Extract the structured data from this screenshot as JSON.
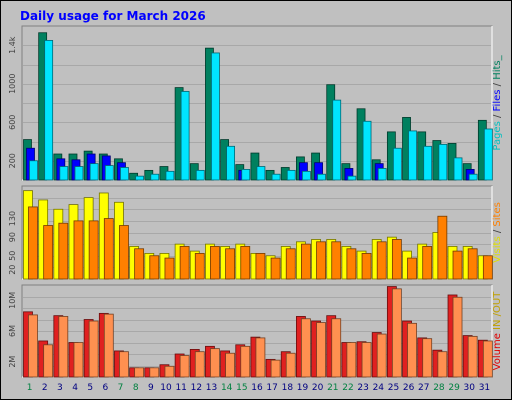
{
  "chart_data": {
    "type": "bar",
    "title": "Daily usage for March 2026",
    "categories": [
      "1",
      "2",
      "3",
      "4",
      "5",
      "6",
      "7",
      "8",
      "9",
      "10",
      "11",
      "12",
      "13",
      "14",
      "15",
      "16",
      "17",
      "18",
      "19",
      "20",
      "21",
      "22",
      "23",
      "24",
      "25",
      "26",
      "27",
      "28",
      "29",
      "30",
      "31"
    ],
    "weekend_days": [
      "1",
      "7",
      "8",
      "14",
      "15",
      "21",
      "22",
      "28",
      "29"
    ],
    "panels": [
      {
        "id": "hits",
        "ylim": [
          0,
          1600
        ],
        "ticks": [
          {
            "value": 200,
            "label": "200"
          },
          {
            "value": 600,
            "label": "600"
          },
          {
            "value": 1000,
            "label": "1000"
          },
          {
            "value": 1400,
            "label": "1.4k"
          }
        ],
        "right_label": [
          {
            "text": "Pages",
            "color": "#00bfbf"
          },
          {
            "text": " / ",
            "color": "#404040"
          },
          {
            "text": "Files",
            "color": "#0000ff"
          },
          {
            "text": " / ",
            "color": "#404040"
          },
          {
            "text": "Hits_",
            "color": "#00805f"
          }
        ],
        "series": [
          {
            "name": "Hits",
            "color": "#00805f",
            "values": [
              420,
              1530,
              270,
              270,
              300,
              270,
              220,
              70,
              100,
              140,
              960,
              170,
              1370,
              420,
              160,
              280,
              100,
              130,
              240,
              280,
              990,
              170,
              740,
              210,
              500,
              650,
              500,
              410,
              380,
              170,
              620
            ]
          },
          {
            "name": "Files",
            "color": "#0000ff",
            "values": [
              330,
              0,
              220,
              210,
              270,
              250,
              180,
              0,
              0,
              0,
              0,
              0,
              0,
              0,
              100,
              0,
              0,
              0,
              180,
              180,
              0,
              120,
              0,
              170,
              0,
              0,
              0,
              0,
              0,
              110,
              0
            ]
          },
          {
            "name": "Pages",
            "color": "#00e5ff",
            "values": [
              200,
              1450,
              140,
              140,
              170,
              150,
              130,
              40,
              60,
              90,
              920,
              100,
              1320,
              350,
              110,
              140,
              60,
              100,
              90,
              60,
              830,
              40,
              610,
              120,
              330,
              510,
              350,
              370,
              230,
              60,
              530
            ]
          }
        ]
      },
      {
        "id": "visits",
        "ylim": [
          0,
          200
        ],
        "ticks": [
          {
            "value": 20,
            "label": "20"
          },
          {
            "value": 50,
            "label": "50"
          },
          {
            "value": 90,
            "label": "90"
          },
          {
            "value": 130,
            "label": "130"
          }
        ],
        "right_label": [
          {
            "text": "Visits",
            "color": "#e0e000"
          },
          {
            "text": " / ",
            "color": "#404040"
          },
          {
            "text": "Sites",
            "color": "#ff8000"
          }
        ],
        "series": [
          {
            "name": "Visits",
            "color": "#ffff00",
            "values": [
              190,
              170,
              150,
              160,
              175,
              185,
              165,
              70,
              55,
              55,
              75,
              60,
              75,
              70,
              75,
              55,
              50,
              70,
              80,
              85,
              85,
              70,
              60,
              85,
              90,
              60,
              75,
              100,
              70,
              70,
              50
            ]
          },
          {
            "name": "Sites",
            "color": "#ff8000",
            "values": [
              155,
              115,
              120,
              125,
              125,
              130,
              115,
              65,
              50,
              45,
              70,
              55,
              70,
              65,
              70,
              55,
              45,
              65,
              75,
              80,
              80,
              65,
              55,
              80,
              85,
              45,
              70,
              135,
              60,
              65,
              50
            ]
          }
        ]
      },
      {
        "id": "volume",
        "ylim": [
          0,
          12
        ],
        "ticks": [
          {
            "value": 2,
            "label": "2M"
          },
          {
            "value": 6,
            "label": "6M"
          },
          {
            "value": 10,
            "label": "10M"
          }
        ],
        "right_label": [
          {
            "text": "Volume",
            "color": "#e00000"
          },
          {
            "text": " IN /OUT ",
            "color": "#c0a000"
          },
          {
            "text": "",
            "color": "#404040"
          }
        ],
        "series": [
          {
            "name": "IN",
            "color": "#e02020",
            "values": [
              8.5,
              4.7,
              8.0,
              4.5,
              7.5,
              8.3,
              3.4,
              1.2,
              1.2,
              1.6,
              3.0,
              3.6,
              4.0,
              3.4,
              4.2,
              5.2,
              2.3,
              3.3,
              7.9,
              7.3,
              8.0,
              4.5,
              4.6,
              5.8,
              11.8,
              7.3,
              5.1,
              3.5,
              10.7,
              5.4,
              4.8
            ]
          },
          {
            "name": "OUT",
            "color": "#ff9050",
            "values": [
              8.1,
              4.2,
              7.9,
              4.5,
              7.3,
              8.2,
              3.3,
              1.2,
              1.2,
              1.4,
              2.8,
              3.3,
              3.7,
              3.1,
              4.0,
              5.1,
              2.2,
              3.1,
              7.6,
              7.1,
              7.6,
              4.5,
              4.5,
              5.6,
              11.5,
              7.0,
              5.0,
              3.3,
              10.4,
              5.3,
              4.7
            ]
          }
        ]
      }
    ]
  }
}
